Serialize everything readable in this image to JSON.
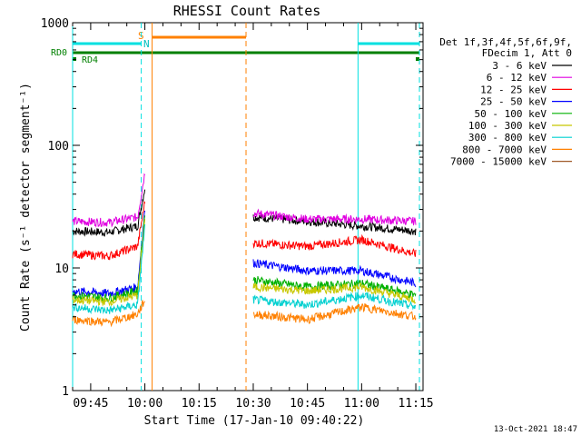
{
  "chart_data": {
    "type": "line",
    "title": "RHESSI Count Rates",
    "xlabel": "Start Time (17-Jan-10 09:40:22)",
    "ylabel": "Count Rate (s⁻¹ detector segment⁻¹)",
    "ylog": true,
    "ylim": [
      1,
      1000
    ],
    "xlim": [
      "09:40",
      "11:17"
    ],
    "x_ticks": [
      "09:45",
      "10:00",
      "10:15",
      "10:30",
      "10:45",
      "11:00",
      "11:15"
    ],
    "y_ticks": [
      "1",
      "10",
      "100",
      "1000"
    ],
    "grid": false,
    "legend_position": "right",
    "legend_header": [
      "Det 1f,3f,4f,5f,6f,9f,",
      "FDecim 1, Att 0"
    ],
    "series": [
      {
        "name": "3 - 6 keV",
        "color": "#000000",
        "segments": [
          {
            "x": [
              "09:40",
              "09:50",
              "09:58",
              "10:00"
            ],
            "y": [
              20,
              19.5,
              22,
              45
            ]
          },
          {
            "x": [
              "10:30",
              "10:45",
              "11:00",
              "11:15"
            ],
            "y": [
              26,
              24,
              22,
              20
            ]
          }
        ]
      },
      {
        "name": "6 - 12 keV",
        "color": "#e000e0",
        "segments": [
          {
            "x": [
              "09:40",
              "09:50",
              "09:58",
              "10:00"
            ],
            "y": [
              24,
              23.5,
              26,
              60
            ]
          },
          {
            "x": [
              "10:30",
              "10:45",
              "11:00",
              "11:15"
            ],
            "y": [
              28,
              25,
              25,
              24
            ]
          }
        ]
      },
      {
        "name": "12 - 25 keV",
        "color": "#ff0000",
        "segments": [
          {
            "x": [
              "09:40",
              "09:50",
              "09:58",
              "10:00"
            ],
            "y": [
              13,
              12.5,
              15,
              35
            ]
          },
          {
            "x": [
              "10:30",
              "10:45",
              "11:00",
              "11:15"
            ],
            "y": [
              16,
              15,
              17,
              13
            ]
          }
        ]
      },
      {
        "name": "25 - 50 keV",
        "color": "#0000ff",
        "segments": [
          {
            "x": [
              "09:40",
              "09:50",
              "09:58",
              "10:00"
            ],
            "y": [
              6.5,
              6.2,
              7,
              30
            ]
          },
          {
            "x": [
              "10:30",
              "10:45",
              "11:00",
              "11:15"
            ],
            "y": [
              11,
              9.5,
              9.5,
              7.5
            ]
          }
        ]
      },
      {
        "name": "50 - 100 keV",
        "color": "#00b000",
        "segments": [
          {
            "x": [
              "09:40",
              "09:50",
              "09:58",
              "10:00"
            ],
            "y": [
              6,
              5.7,
              6.5,
              28
            ]
          },
          {
            "x": [
              "10:30",
              "10:45",
              "11:00",
              "11:15"
            ],
            "y": [
              8,
              7,
              7.5,
              6
            ]
          }
        ]
      },
      {
        "name": "100 - 300 keV",
        "color": "#c8c800",
        "segments": [
          {
            "x": [
              "09:40",
              "09:50",
              "09:58",
              "10:00"
            ],
            "y": [
              5.5,
              5.3,
              6,
              25
            ]
          },
          {
            "x": [
              "10:30",
              "10:45",
              "11:00",
              "11:15"
            ],
            "y": [
              7,
              6.5,
              7,
              5.5
            ]
          }
        ]
      },
      {
        "name": "300 - 800 keV",
        "color": "#00d0d0",
        "segments": [
          {
            "x": [
              "09:40",
              "09:50",
              "09:58",
              "10:00"
            ],
            "y": [
              4.8,
              4.5,
              5,
              22
            ]
          },
          {
            "x": [
              "10:30",
              "10:45",
              "11:00",
              "11:15"
            ],
            "y": [
              5.5,
              5,
              6,
              4.8
            ]
          }
        ]
      },
      {
        "name": "800 - 7000 keV",
        "color": "#ff8000",
        "segments": [
          {
            "x": [
              "09:40",
              "09:50",
              "09:58",
              "10:00"
            ],
            "y": [
              3.8,
              3.6,
              4.2,
              5.5
            ]
          },
          {
            "x": [
              "10:30",
              "10:45",
              "11:00",
              "11:15"
            ],
            "y": [
              4.2,
              3.8,
              4.8,
              4
            ]
          }
        ]
      },
      {
        "name": "7000 - 15000 keV",
        "color": "#a05a28",
        "segments": []
      }
    ],
    "vertical_lines": [
      {
        "x": "09:40",
        "color": "#00e0e0",
        "style": "solid"
      },
      {
        "x": "09:59",
        "color": "#00e0e0",
        "style": "dashed"
      },
      {
        "x": "10:02",
        "color": "#ff8000",
        "style": "solid"
      },
      {
        "x": "10:28",
        "color": "#ff8000",
        "style": "dashed"
      },
      {
        "x": "10:59",
        "color": "#00e0e0",
        "style": "solid"
      },
      {
        "x": "11:16",
        "color": "#00e0e0",
        "style": "dashed"
      }
    ],
    "status_bars": [
      {
        "color": "#00e0e0",
        "segments": [
          [
            "09:40",
            "09:59"
          ],
          [
            "10:59",
            "11:16"
          ]
        ]
      },
      {
        "color": "#ff8000",
        "segments": [
          [
            "10:02",
            "10:28"
          ]
        ]
      },
      {
        "color": "#008000",
        "segments": [
          [
            "09:40",
            "11:16"
          ]
        ]
      }
    ],
    "annotations": [
      {
        "text": "RD0",
        "color": "#008000"
      },
      {
        "text": "RD4",
        "color": "#008000"
      },
      {
        "text": "S",
        "color": "#ff8000"
      },
      {
        "text": "N",
        "color": "#00c0c0"
      }
    ],
    "footer": "13-Oct-2021 18:47"
  }
}
